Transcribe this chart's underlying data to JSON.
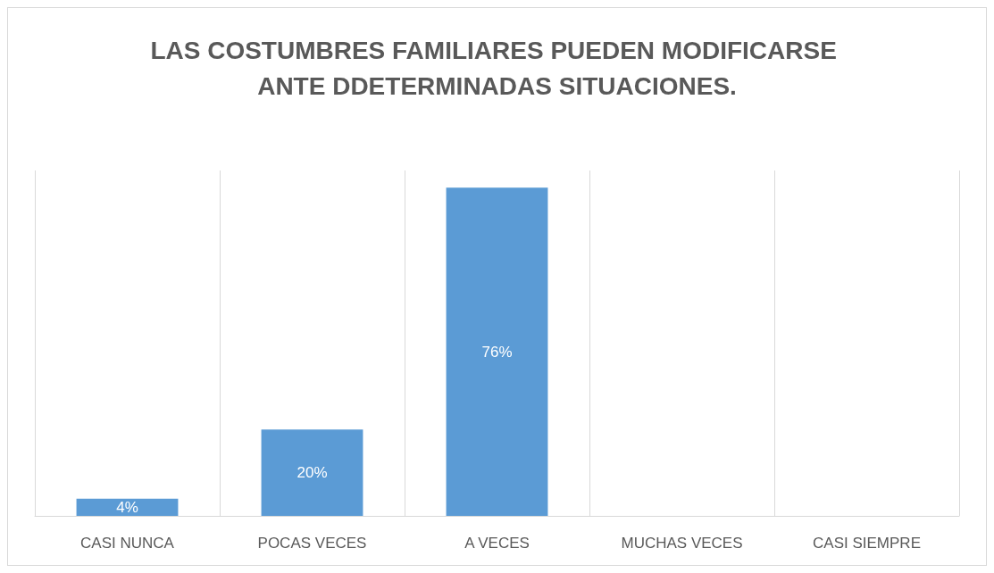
{
  "chart_data": {
    "type": "bar",
    "title": "LAS COSTUMBRES FAMILIARES PUEDEN MODIFICARSE ANTE DDETERMINADAS SITUACIONES.",
    "categories": [
      "CASI NUNCA",
      "POCAS VECES",
      "A VECES",
      "MUCHAS VECES",
      "CASI SIEMPRE"
    ],
    "values": [
      4,
      20,
      76,
      0,
      0
    ],
    "value_labels": [
      "4%",
      "20%",
      "76%",
      null,
      null
    ],
    "color": "#5b9bd5",
    "grid": "x"
  }
}
